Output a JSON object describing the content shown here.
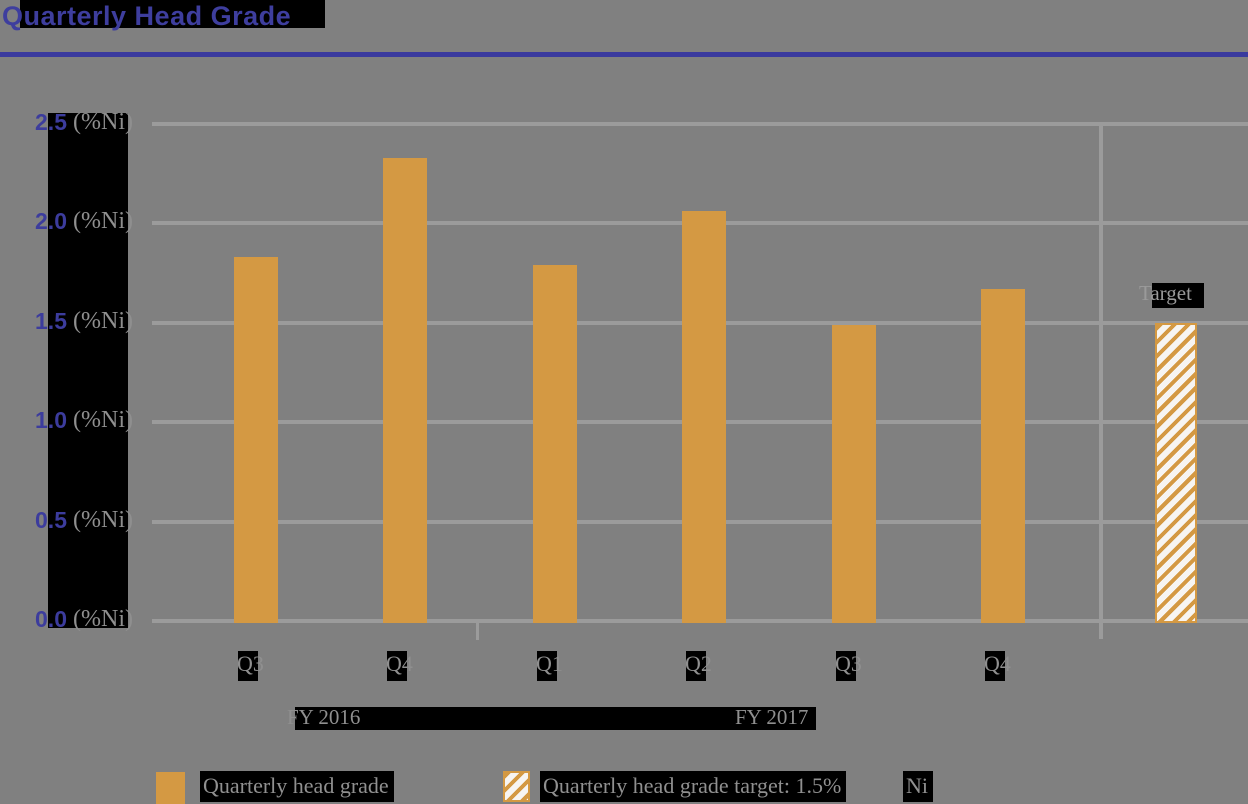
{
  "page": {
    "title": "Quarterly Head Grade"
  },
  "colors": {
    "background": "#808080",
    "accent_purple": "#3E3E9E",
    "rule_purple": "#3A3A9E",
    "bar_orange": "#D49943",
    "gridline_gray": "#9B9B9B",
    "label_gray": "#8F8F8F",
    "highlight_black": "#000000",
    "hatch_background": "#F7F5F2"
  },
  "chart_data": {
    "type": "bar",
    "title": "Quarterly Head Grade",
    "ylabel": "(%Ni)",
    "ylim": [
      0,
      2.5
    ],
    "ytick_step": 0.5,
    "grid": true,
    "legend_position": "bottom",
    "categories": [
      "Q3",
      "Q4",
      "Q1",
      "Q2",
      "Q3",
      "Q4"
    ],
    "fiscal_year_groups": [
      {
        "label": "FY 2016",
        "quarter_indexes": [
          0,
          1
        ]
      },
      {
        "label": "FY 2017",
        "quarter_indexes": [
          2,
          3,
          4,
          5
        ]
      }
    ],
    "series": [
      {
        "name": "Quarterly head grade",
        "values": [
          1.83,
          2.33,
          1.79,
          2.06,
          1.49,
          1.67
        ]
      }
    ],
    "target": {
      "label": "Target",
      "value": 1.5,
      "legend": "Quarterly head grade target: 1.5% Ni"
    }
  },
  "y_axis": {
    "ticks": [
      {
        "value": "2.5",
        "unit": "(%Ni)"
      },
      {
        "value": "2.0",
        "unit": "(%Ni)"
      },
      {
        "value": "1.5",
        "unit": "(%Ni)"
      },
      {
        "value": "1.0",
        "unit": "(%Ni)"
      },
      {
        "value": "0.5",
        "unit": "(%Ni)"
      },
      {
        "value": "0.0",
        "unit": "(%Ni)"
      }
    ]
  },
  "x_axis": {
    "quarters": [
      "Q3",
      "Q4",
      "Q1",
      "Q2",
      "Q3",
      "Q4"
    ],
    "years": {
      "fy2016": "FY 2016",
      "fy2017": "FY 2017"
    }
  },
  "annotations": {
    "target_label": "Target"
  },
  "legend": {
    "item1": "Quarterly head grade",
    "item2_main": "Quarterly head grade target: 1.5%",
    "item2_suffix": "Ni"
  }
}
